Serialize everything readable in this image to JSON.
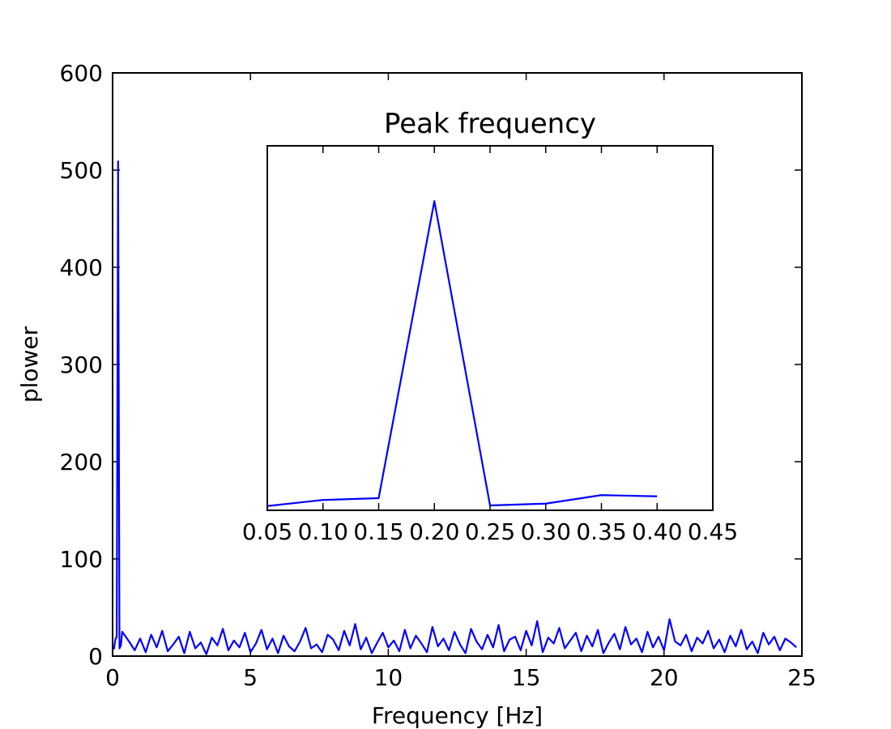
{
  "chart_data": [
    {
      "type": "line",
      "xlabel": "Frequency [Hz]",
      "ylabel": "plower",
      "xlim": [
        0,
        25
      ],
      "ylim": [
        0,
        600
      ],
      "xticks": [
        0,
        5,
        10,
        15,
        20,
        25
      ],
      "yticks": [
        0,
        100,
        200,
        300,
        400,
        500,
        600
      ],
      "x": [
        0.05,
        0.1,
        0.15,
        0.2,
        0.25,
        0.3,
        0.35,
        0.4,
        0.6,
        0.8,
        1,
        1.2,
        1.4,
        1.6,
        1.8,
        2,
        2.2,
        2.4,
        2.6,
        2.8,
        3,
        3.2,
        3.4,
        3.6,
        3.8,
        4,
        4.2,
        4.4,
        4.6,
        4.8,
        5,
        5.2,
        5.4,
        5.6,
        5.8,
        6,
        6.2,
        6.4,
        6.6,
        6.8,
        7,
        7.2,
        7.4,
        7.6,
        7.8,
        8,
        8.2,
        8.4,
        8.6,
        8.8,
        9,
        9.2,
        9.4,
        9.6,
        9.8,
        10,
        10.2,
        10.4,
        10.6,
        10.8,
        11,
        11.2,
        11.4,
        11.6,
        11.8,
        12,
        12.2,
        12.4,
        12.6,
        12.8,
        13,
        13.2,
        13.4,
        13.6,
        13.8,
        14,
        14.2,
        14.4,
        14.6,
        14.8,
        15,
        15.2,
        15.4,
        15.6,
        15.8,
        16,
        16.2,
        16.4,
        16.6,
        16.8,
        17,
        17.2,
        17.4,
        17.6,
        17.8,
        18,
        18.2,
        18.4,
        18.6,
        18.8,
        19,
        19.2,
        19.4,
        19.6,
        19.8,
        20,
        20.2,
        20.4,
        20.6,
        20.8,
        21,
        21.2,
        21.4,
        21.6,
        21.8,
        22,
        22.2,
        22.4,
        22.6,
        22.8,
        23,
        23.2,
        23.4,
        23.6,
        23.8,
        24,
        24.2,
        24.4,
        24.6,
        24.8
      ],
      "series": [
        {
          "color": "#0000ff",
          "values": [
            7,
            17,
            20,
            509,
            8,
            11,
            25,
            23,
            15,
            6,
            18,
            4,
            22,
            9,
            26,
            5,
            12,
            20,
            3,
            25,
            8,
            14,
            2,
            19,
            11,
            28,
            6,
            16,
            9,
            24,
            4,
            13,
            27,
            7,
            18,
            3,
            21,
            10,
            5,
            15,
            29,
            8,
            12,
            4,
            22,
            17,
            6,
            26,
            11,
            33,
            7,
            19,
            3,
            14,
            24,
            9,
            16,
            5,
            27,
            8,
            21,
            13,
            4,
            30,
            10,
            18,
            6,
            25,
            12,
            3,
            28,
            15,
            7,
            22,
            9,
            32,
            5,
            17,
            20,
            6,
            26,
            11,
            36,
            4,
            19,
            13,
            29,
            8,
            16,
            24,
            5,
            21,
            10,
            27,
            3,
            14,
            23,
            7,
            30,
            12,
            18,
            4,
            25,
            9,
            20,
            6,
            38,
            15,
            11,
            22,
            5,
            19,
            13,
            26,
            8,
            17,
            4,
            21,
            10,
            27,
            7,
            15,
            3,
            24,
            12,
            20,
            6,
            18,
            14,
            9
          ]
        }
      ]
    },
    {
      "type": "line",
      "title": "Peak frequency",
      "xlim": [
        0.05,
        0.45
      ],
      "ylim": [
        0,
        600
      ],
      "xticks": [
        0.05,
        {
          "value": 0.1,
          "label": "0.10"
        },
        0.15,
        {
          "value": 0.2,
          "label": "0.20"
        },
        0.25,
        {
          "value": 0.3,
          "label": "0.30"
        },
        0.35,
        {
          "value": 0.4,
          "label": "0.40"
        },
        0.45
      ],
      "x": [
        0.05,
        0.1,
        0.15,
        0.2,
        0.25,
        0.3,
        0.35,
        0.4
      ],
      "series": [
        {
          "color": "#0000ff",
          "values": [
            7,
            17,
            20,
            509,
            8,
            11,
            25,
            23
          ]
        }
      ]
    }
  ]
}
